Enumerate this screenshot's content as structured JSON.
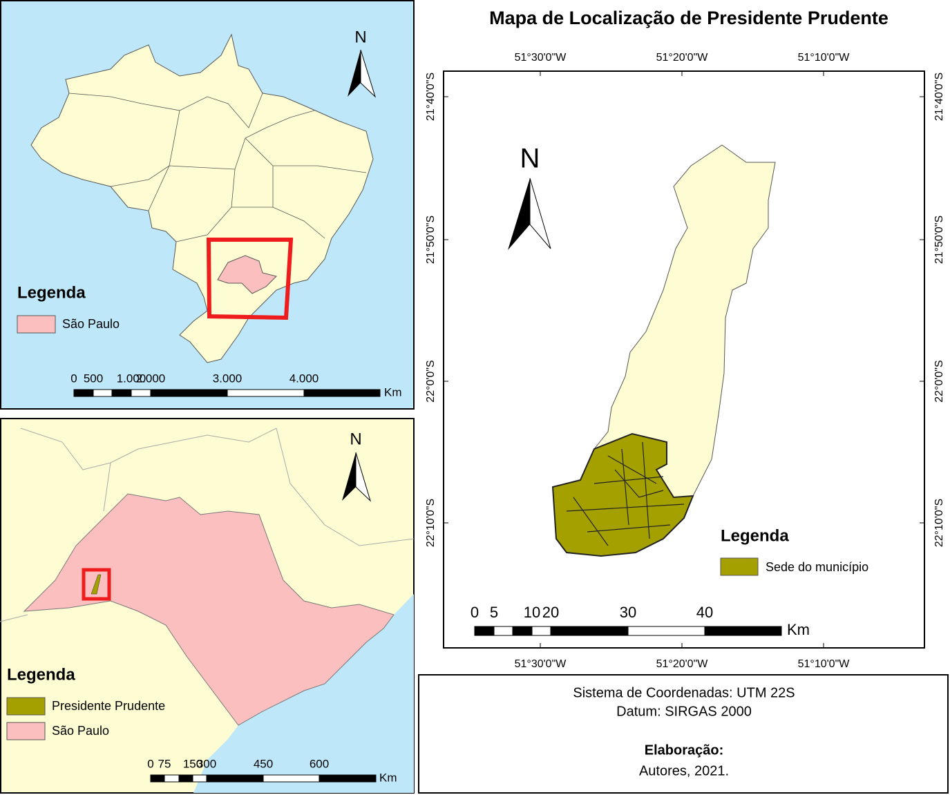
{
  "inset_brazil": {
    "north": "N",
    "legend_title": "Legenda",
    "legend_items": [
      "São Paulo"
    ],
    "scale_labels": [
      "0",
      "500",
      "1.000",
      "2.000",
      "3.000",
      "4.000"
    ],
    "scale_unit": "Km"
  },
  "inset_sao_paulo": {
    "north": "N",
    "legend_title": "Legenda",
    "legend_items": [
      "Presidente Prudente",
      "São Paulo"
    ],
    "scale_labels": [
      "0",
      "75",
      "150",
      "300",
      "450",
      "600"
    ],
    "scale_unit": "Km"
  },
  "main_map": {
    "title": "Mapa de Localização de Presidente Prudente",
    "top_labels": [
      "51°30'0\"W",
      "51°20'0\"W",
      "51°10'0\"W"
    ],
    "bottom_labels": [
      "51°30'0\"W",
      "51°20'0\"W",
      "51°10'0\"W"
    ],
    "left_labels": [
      "21°40'0\"S",
      "21°50'0\"S",
      "22°0'0\"S",
      "22°10'0\"S"
    ],
    "right_labels": [
      "21°40'0\"S",
      "21°50'0\"S",
      "22°0'0\"S",
      "22°10'0\"S"
    ],
    "north": "N",
    "legend_title": "Legenda",
    "legend_items": [
      "Sede do município"
    ],
    "scale_labels": [
      "0",
      "5",
      "10",
      "20",
      "30",
      "40"
    ],
    "scale_unit": "Km"
  },
  "info": {
    "lines": [
      "Sistema de Coordenadas: UTM 22S",
      "Datum: SIRGAS 2000"
    ],
    "credit_title": "Elaboração:",
    "credit": "Autores, 2021."
  }
}
